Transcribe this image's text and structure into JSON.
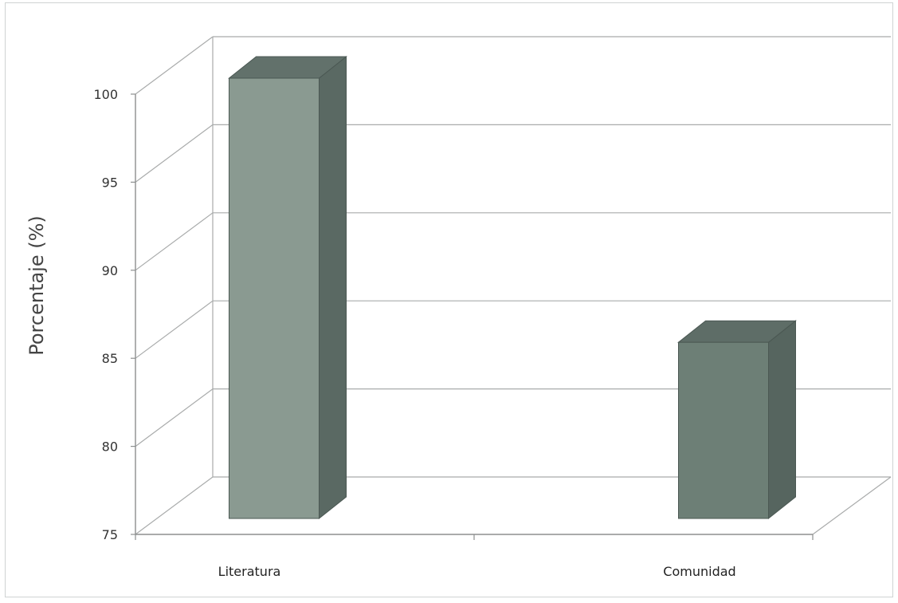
{
  "chart_data": {
    "type": "bar",
    "subtype": "3d-column",
    "title": "",
    "xlabel": "",
    "ylabel": "Porcentaje  (%)",
    "categories": [
      "Literatura",
      "Comunidad"
    ],
    "values": [
      100,
      85
    ],
    "ylim": [
      75,
      100
    ],
    "yticks": [
      75,
      80,
      85,
      90,
      95,
      100
    ],
    "grid": true,
    "legend": "none",
    "colors": {
      "bar_front": [
        "#8a9a91",
        "#6d7f76"
      ],
      "bar_side": [
        "#5a6963",
        "#56655f"
      ],
      "bar_top": [
        "#62716b",
        "#5e6d67"
      ],
      "grid": "#a9abab",
      "frame": "#cfd3d3"
    }
  }
}
